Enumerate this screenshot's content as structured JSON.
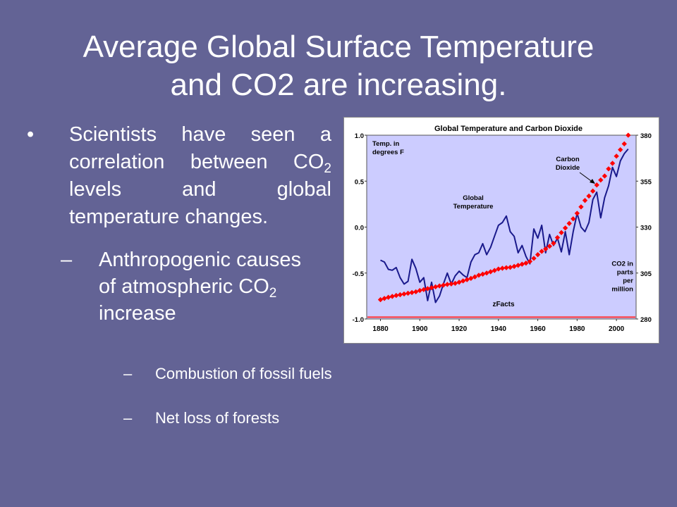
{
  "slide": {
    "title_line1": "Average Global Surface Temperature",
    "title_line2": "and CO2 are increasing."
  },
  "bullets": {
    "bullet_1": {
      "marker": "•",
      "text_a": "Scientists have seen a correlation between CO",
      "sub": "2",
      "text_b": " levels and global temperature changes."
    },
    "bullet_2": {
      "marker": "–",
      "text_a": "Anthropogenic causes of atmospheric CO",
      "sub": "2",
      "text_b": " increase"
    },
    "sub_bullets": [
      {
        "marker": "–",
        "text": "Combustion of fossil fuels"
      },
      {
        "marker": "–",
        "text": "Net loss of forests"
      }
    ]
  },
  "chart_data": {
    "type": "line",
    "title": "Global Temperature and Carbon Dioxide",
    "left_axis_label_lines": [
      "Temp. in",
      "degrees F"
    ],
    "right_axis_label_lines": [
      "CO2 in",
      "parts",
      "per",
      "million"
    ],
    "source_label": "zFacts",
    "annotations": {
      "temperature": [
        "Global",
        "Temperature"
      ],
      "co2": [
        "Carbon",
        "Dioxide"
      ]
    },
    "xlim": [
      1873,
      2010
    ],
    "x_ticks": [
      1880,
      1900,
      1920,
      1940,
      1960,
      1980,
      2000
    ],
    "ylim_left": [
      -1.0,
      1.0
    ],
    "y_ticks_left": [
      "1.0",
      "0.5",
      "0.0",
      "-0.5",
      "-1.0"
    ],
    "y_tick_values_left": [
      1.0,
      0.5,
      0.0,
      -0.5,
      -1.0
    ],
    "ylim_right": [
      280,
      380
    ],
    "y_ticks_right": [
      "380",
      "355",
      "330",
      "305",
      "280"
    ],
    "y_tick_values_right": [
      380,
      355,
      330,
      305,
      280
    ],
    "reference_line_value_right": 281,
    "grid": false,
    "colors": {
      "plot_bg": "#ccccff",
      "temperature": "#1a1a8c",
      "co2": "#ff0000",
      "reference": "#ff3333"
    },
    "series": [
      {
        "name": "Global Temperature",
        "axis": "left",
        "x": [
          1880,
          1882,
          1884,
          1886,
          1888,
          1890,
          1892,
          1894,
          1896,
          1898,
          1900,
          1902,
          1904,
          1906,
          1908,
          1910,
          1912,
          1914,
          1916,
          1918,
          1920,
          1922,
          1924,
          1926,
          1928,
          1930,
          1932,
          1934,
          1936,
          1938,
          1940,
          1942,
          1944,
          1946,
          1948,
          1950,
          1952,
          1954,
          1956,
          1958,
          1960,
          1962,
          1964,
          1966,
          1968,
          1970,
          1972,
          1974,
          1976,
          1978,
          1980,
          1982,
          1984,
          1986,
          1988,
          1990,
          1992,
          1994,
          1996,
          1998,
          2000,
          2002,
          2004,
          2006
        ],
        "values": [
          -0.36,
          -0.38,
          -0.46,
          -0.47,
          -0.44,
          -0.55,
          -0.62,
          -0.59,
          -0.35,
          -0.45,
          -0.6,
          -0.55,
          -0.8,
          -0.6,
          -0.82,
          -0.75,
          -0.62,
          -0.5,
          -0.62,
          -0.53,
          -0.48,
          -0.52,
          -0.55,
          -0.38,
          -0.3,
          -0.28,
          -0.18,
          -0.3,
          -0.22,
          -0.1,
          0.02,
          0.05,
          0.12,
          -0.05,
          -0.1,
          -0.28,
          -0.2,
          -0.32,
          -0.4,
          -0.02,
          -0.12,
          0.02,
          -0.28,
          -0.08,
          -0.2,
          -0.12,
          -0.27,
          -0.05,
          -0.3,
          -0.05,
          0.15,
          0.0,
          -0.05,
          0.05,
          0.3,
          0.38,
          0.1,
          0.32,
          0.45,
          0.65,
          0.55,
          0.72,
          0.8,
          0.85
        ]
      },
      {
        "name": "Carbon Dioxide",
        "axis": "right",
        "x": [
          1880,
          1882,
          1884,
          1886,
          1888,
          1890,
          1892,
          1894,
          1896,
          1898,
          1900,
          1902,
          1904,
          1906,
          1908,
          1910,
          1912,
          1914,
          1916,
          1918,
          1920,
          1922,
          1924,
          1926,
          1928,
          1930,
          1932,
          1934,
          1936,
          1938,
          1940,
          1942,
          1944,
          1946,
          1948,
          1950,
          1952,
          1954,
          1956,
          1958,
          1960,
          1962,
          1964,
          1966,
          1968,
          1970,
          1972,
          1974,
          1976,
          1978,
          1980,
          1982,
          1984,
          1986,
          1988,
          1990,
          1992,
          1994,
          1996,
          1998,
          2000,
          2002,
          2004,
          2006
        ],
        "values": [
          290.5,
          291.2,
          291.8,
          292.3,
          292.8,
          293.2,
          293.6,
          294.0,
          294.4,
          294.8,
          295.5,
          296.0,
          296.5,
          297.0,
          297.5,
          298.0,
          298.4,
          298.8,
          299.1,
          299.4,
          300.0,
          300.7,
          301.4,
          302.1,
          302.9,
          303.8,
          304.4,
          305.0,
          305.7,
          306.4,
          307.2,
          307.6,
          307.9,
          308.1,
          308.6,
          309.2,
          309.8,
          310.4,
          311.3,
          313.0,
          315.0,
          316.8,
          318.1,
          319.6,
          321.2,
          324.3,
          327.0,
          329.5,
          332.0,
          334.5,
          337.5,
          341.0,
          344.5,
          346.9,
          349.6,
          352.9,
          355.6,
          357.8,
          361.7,
          364.7,
          368.6,
          372.1,
          375.3,
          380.0
        ]
      }
    ]
  }
}
